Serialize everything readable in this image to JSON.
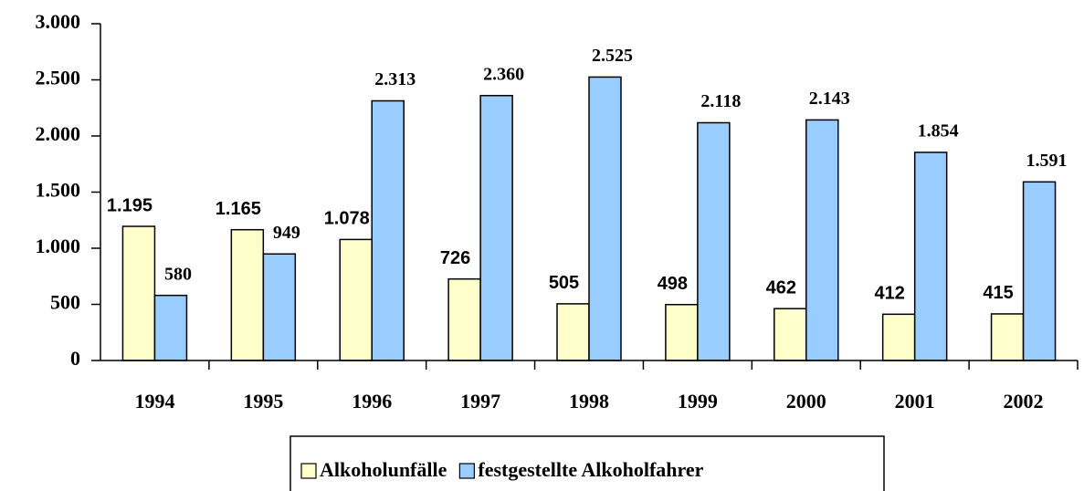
{
  "chart_data": {
    "type": "bar",
    "categories": [
      "1994",
      "1995",
      "1996",
      "1997",
      "1998",
      "1999",
      "2000",
      "2001",
      "2002"
    ],
    "series": [
      {
        "name": "Alkoholunfälle",
        "color": "#ffffcc",
        "values": [
          1195,
          1165,
          1078,
          726,
          505,
          498,
          462,
          412,
          415
        ],
        "value_labels": [
          "1.195",
          "1.165",
          "1.078",
          "726",
          "505",
          "498",
          "462",
          "412",
          "415"
        ]
      },
      {
        "name": "festgestellte Alkoholfahrer",
        "color": "#99ccff",
        "values": [
          580,
          949,
          2313,
          2360,
          2525,
          2118,
          2143,
          1854,
          1591
        ],
        "value_labels": [
          "580",
          "949",
          "2.313",
          "2.360",
          "2.525",
          "2.118",
          "2.143",
          "1.854",
          "1.591"
        ]
      }
    ],
    "ylim": [
      0,
      3000
    ],
    "yticks": [
      0,
      500,
      {
        "value": 1000,
        "label": "1.000"
      },
      {
        "value": 1500,
        "label": "1.500"
      },
      {
        "value": 2000,
        "label": "2.000"
      },
      {
        "value": 2500,
        "label": "2.500"
      },
      {
        "value": 3000,
        "label": "3.000"
      }
    ],
    "grid": false,
    "legend": "bottom"
  }
}
